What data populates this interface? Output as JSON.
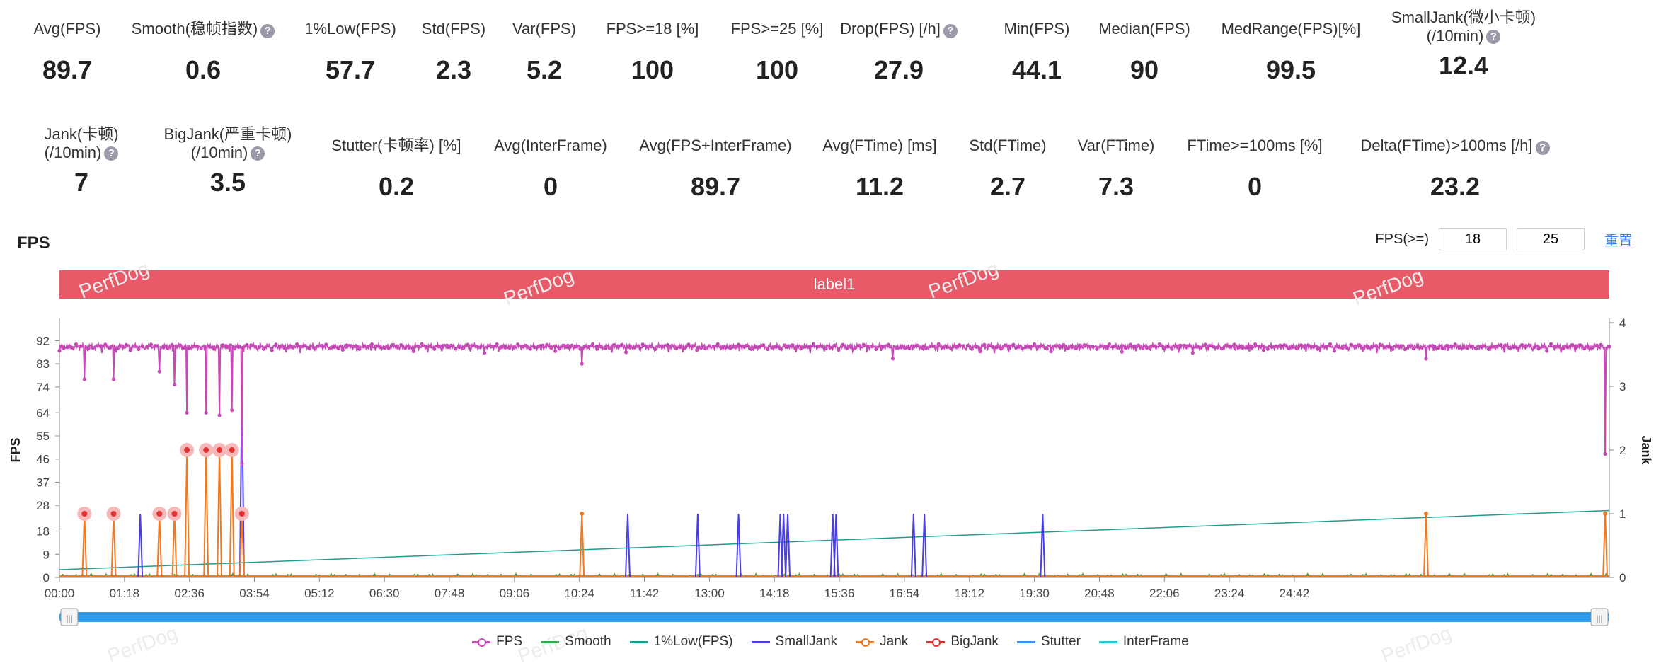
{
  "stats_row1": [
    {
      "label": "Avg(FPS)",
      "value": "89.7",
      "help": false
    },
    {
      "label": "Smooth(稳帧指数)",
      "value": "0.6",
      "help": true
    },
    {
      "label": "1%Low(FPS)",
      "value": "57.7",
      "help": false
    },
    {
      "label": "Std(FPS)",
      "value": "2.3",
      "help": false
    },
    {
      "label": "Var(FPS)",
      "value": "5.2",
      "help": false
    },
    {
      "label": "FPS>=18 [%]",
      "value": "100",
      "help": false
    },
    {
      "label": "FPS>=25 [%]",
      "value": "100",
      "help": false
    },
    {
      "label": "Drop(FPS) [/h]",
      "value": "27.9",
      "help": true
    },
    {
      "label": "Min(FPS)",
      "value": "44.1",
      "help": false
    },
    {
      "label": "Median(FPS)",
      "value": "90",
      "help": false
    },
    {
      "label": "MedRange(FPS)[%]",
      "value": "99.5",
      "help": false
    },
    {
      "label": "SmallJank(微小卡顿)",
      "label2": "(/10min)",
      "value": "12.4",
      "help": true
    }
  ],
  "stats_row2": [
    {
      "label": "Jank(卡顿)",
      "label2": "(/10min)",
      "value": "7",
      "help": true
    },
    {
      "label": "BigJank(严重卡顿)",
      "label2": "(/10min)",
      "value": "3.5",
      "help": true
    },
    {
      "label": "Stutter(卡顿率) [%]",
      "value": "0.2",
      "help": false
    },
    {
      "label": "Avg(InterFrame)",
      "value": "0",
      "help": false
    },
    {
      "label": "Avg(FPS+InterFrame)",
      "value": "89.7",
      "help": false
    },
    {
      "label": "Avg(FTime) [ms]",
      "value": "11.2",
      "help": false
    },
    {
      "label": "Std(FTime)",
      "value": "2.7",
      "help": false
    },
    {
      "label": "Var(FTime)",
      "value": "7.3",
      "help": false
    },
    {
      "label": "FTime>=100ms [%]",
      "value": "0",
      "help": false
    },
    {
      "label": "Delta(FTime)>100ms [/h]",
      "value": "23.2",
      "help": true
    }
  ],
  "help_glyph": "?",
  "chart_title": "FPS",
  "fps_filter": {
    "label": "FPS(>=)",
    "min": "18",
    "max": "25",
    "reset": "重置"
  },
  "label_bar": "label1",
  "watermark": "PerfDog",
  "chart_data": {
    "type": "line",
    "xlabel": "",
    "ylabel": "FPS",
    "y2label": "Jank",
    "ylim": [
      0,
      99
    ],
    "y2lim": [
      0,
      4
    ],
    "yticks": [
      0,
      9,
      18,
      28,
      37,
      46,
      55,
      64,
      74,
      83,
      92
    ],
    "y2ticks": [
      0,
      1,
      2,
      3,
      4
    ],
    "xticks": [
      "00:00",
      "01:18",
      "02:36",
      "03:54",
      "05:12",
      "06:30",
      "07:48",
      "09:06",
      "10:24",
      "11:42",
      "13:00",
      "14:18",
      "15:36",
      "16:54",
      "18:12",
      "19:30",
      "20:48",
      "22:06",
      "23:24",
      "24:42"
    ],
    "x_unit": "seconds",
    "x_max": 1860,
    "grid": false,
    "legend_position": "bottom",
    "colors": {
      "FPS": "#c44bb5",
      "Smooth": "#3aa84a",
      "1%Low(FPS)": "#1a9e8c",
      "SmallJank": "#4b3fe0",
      "Jank": "#f07a24",
      "BigJank": "#e03030",
      "Stutter": "#3d8ef0",
      "InterFrame": "#26c6da"
    },
    "legend": [
      "FPS",
      "Smooth",
      "1%Low(FPS)",
      "SmallJank",
      "Jank",
      "BigJank",
      "Stutter",
      "InterFrame"
    ],
    "fps_baseline": 89.7,
    "fps_dips": [
      [
        30,
        77
      ],
      [
        65,
        77
      ],
      [
        120,
        80
      ],
      [
        138,
        75
      ],
      [
        153,
        64
      ],
      [
        176,
        64
      ],
      [
        192,
        63
      ],
      [
        207,
        65
      ],
      [
        219,
        44.1
      ],
      [
        627,
        83
      ],
      [
        1000,
        85
      ],
      [
        1640,
        85
      ],
      [
        1855,
        48
      ]
    ],
    "bigjank_x": [
      30,
      65,
      120,
      138,
      153,
      176,
      192,
      207,
      219
    ],
    "bigjank_jank_values": [
      1,
      1,
      1,
      1,
      2,
      2,
      2,
      2,
      1
    ],
    "jank_x": [
      627,
      1640,
      1855
    ],
    "smalljank_x": [
      97,
      219,
      682,
      766,
      815,
      865,
      869,
      874,
      928,
      932,
      1025,
      1038,
      1180
    ],
    "smalljank_values": [
      1,
      3,
      1,
      1,
      1,
      1,
      1,
      1,
      1,
      1,
      1,
      1,
      1
    ],
    "low1_start": 3,
    "low1_end": 26
  },
  "scrollbar": {
    "left_handle": "|||",
    "right_handle": "|||"
  }
}
